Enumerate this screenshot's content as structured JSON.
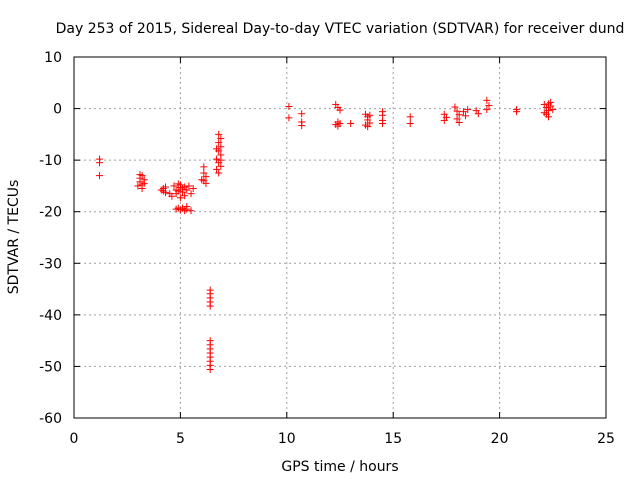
{
  "chart_data": {
    "type": "scatter",
    "title": "Day 253 of 2015, Sidereal Day-to-day VTEC variation (SDTVAR) for receiver dund",
    "xlabel": "GPS time / hours",
    "ylabel": "SDTVAR / TECUs",
    "xlim": [
      0,
      25
    ],
    "ylim": [
      -60,
      10
    ],
    "xticks": [
      0,
      5,
      10,
      15,
      20,
      25
    ],
    "yticks": [
      10,
      0,
      -10,
      -20,
      -30,
      -40,
      -50,
      -60
    ],
    "xtick_labels": [
      "0",
      "5",
      "10",
      "15",
      "20",
      "25"
    ],
    "ytick_labels": [
      "10",
      "0",
      "-10",
      "-20",
      "-30",
      "-40",
      "-50",
      "-60"
    ],
    "grid": true,
    "marker": "+",
    "color": "#ff0000",
    "series": [
      {
        "name": "SDTVAR",
        "points": [
          [
            1.2,
            -9.8
          ],
          [
            1.2,
            -10.5
          ],
          [
            1.2,
            -13.0
          ],
          [
            3.1,
            -12.8
          ],
          [
            3.1,
            -13.5
          ],
          [
            3.1,
            -14.2
          ],
          [
            3.2,
            -13.0
          ],
          [
            3.2,
            -14.8
          ],
          [
            3.3,
            -13.8
          ],
          [
            3.3,
            -14.5
          ],
          [
            3.0,
            -15.0
          ],
          [
            3.2,
            -15.5
          ],
          [
            4.2,
            -15.5
          ],
          [
            4.2,
            -16.0
          ],
          [
            4.3,
            -16.3
          ],
          [
            4.1,
            -15.8
          ],
          [
            4.3,
            -15.2
          ],
          [
            4.7,
            -15.0
          ],
          [
            4.8,
            -15.8
          ],
          [
            4.8,
            -16.5
          ],
          [
            4.9,
            -14.6
          ],
          [
            4.9,
            -16.0
          ],
          [
            5.0,
            -15.3
          ],
          [
            5.0,
            -14.8
          ],
          [
            5.1,
            -16.2
          ],
          [
            5.1,
            -15.6
          ],
          [
            5.2,
            -15.2
          ],
          [
            5.3,
            -15.8
          ],
          [
            5.4,
            -15.0
          ],
          [
            5.5,
            -16.5
          ],
          [
            5.6,
            -15.5
          ],
          [
            4.6,
            -17.0
          ],
          [
            5.0,
            -17.3
          ],
          [
            5.2,
            -16.9
          ],
          [
            4.5,
            -16.5
          ],
          [
            4.9,
            -19.3
          ],
          [
            5.0,
            -19.6
          ],
          [
            5.1,
            -19.3
          ],
          [
            5.2,
            -19.8
          ],
          [
            5.3,
            -19.5
          ],
          [
            5.5,
            -19.8
          ],
          [
            4.8,
            -19.5
          ],
          [
            5.3,
            -19.0
          ],
          [
            6.1,
            -11.3
          ],
          [
            6.1,
            -12.5
          ],
          [
            6.2,
            -13.2
          ],
          [
            6.1,
            -14.0
          ],
          [
            6.2,
            -14.5
          ],
          [
            6.0,
            -13.8
          ],
          [
            6.4,
            -35.2
          ],
          [
            6.4,
            -35.9
          ],
          [
            6.4,
            -36.7
          ],
          [
            6.4,
            -37.5
          ],
          [
            6.4,
            -38.3
          ],
          [
            6.4,
            -45.0
          ],
          [
            6.4,
            -45.8
          ],
          [
            6.4,
            -46.6
          ],
          [
            6.4,
            -47.4
          ],
          [
            6.4,
            -48.2
          ],
          [
            6.4,
            -49.0
          ],
          [
            6.4,
            -49.8
          ],
          [
            6.4,
            -50.6
          ],
          [
            6.8,
            -5.0
          ],
          [
            6.9,
            -5.8
          ],
          [
            6.8,
            -6.6
          ],
          [
            6.9,
            -7.4
          ],
          [
            6.8,
            -8.2
          ],
          [
            6.9,
            -9.0
          ],
          [
            6.7,
            -9.8
          ],
          [
            6.8,
            -10.5
          ],
          [
            6.9,
            -11.2
          ],
          [
            6.7,
            -11.8
          ],
          [
            6.8,
            -12.5
          ],
          [
            6.9,
            -10.0
          ],
          [
            6.7,
            -7.8
          ],
          [
            10.1,
            0.4
          ],
          [
            10.1,
            -1.8
          ],
          [
            10.7,
            -1.0
          ],
          [
            10.7,
            -2.6
          ],
          [
            10.7,
            -3.3
          ],
          [
            12.3,
            0.8
          ],
          [
            12.4,
            0.2
          ],
          [
            12.5,
            -0.3
          ],
          [
            12.4,
            -2.6
          ],
          [
            12.3,
            -3.1
          ],
          [
            12.5,
            -2.9
          ],
          [
            12.4,
            -3.4
          ],
          [
            13.0,
            -2.9
          ],
          [
            13.7,
            -1.1
          ],
          [
            13.8,
            -1.6
          ],
          [
            13.8,
            -2.2
          ],
          [
            13.9,
            -2.8
          ],
          [
            13.7,
            -3.2
          ],
          [
            13.9,
            -1.3
          ],
          [
            13.8,
            -3.5
          ],
          [
            14.5,
            -0.6
          ],
          [
            14.5,
            -1.3
          ],
          [
            14.5,
            -2.3
          ],
          [
            14.5,
            -2.9
          ],
          [
            15.8,
            -1.6
          ],
          [
            15.8,
            -2.9
          ],
          [
            17.4,
            -1.1
          ],
          [
            17.5,
            -1.7
          ],
          [
            17.4,
            -2.3
          ],
          [
            17.9,
            0.3
          ],
          [
            18.0,
            -0.5
          ],
          [
            18.1,
            -1.2
          ],
          [
            18.0,
            -2.0
          ],
          [
            18.1,
            -2.7
          ],
          [
            18.3,
            -0.6
          ],
          [
            18.4,
            -1.4
          ],
          [
            18.5,
            -0.2
          ],
          [
            18.9,
            -0.4
          ],
          [
            19.0,
            -1.0
          ],
          [
            19.4,
            1.6
          ],
          [
            19.5,
            0.6
          ],
          [
            19.4,
            -0.2
          ],
          [
            20.8,
            -0.2
          ],
          [
            20.8,
            -0.6
          ],
          [
            22.1,
            0.8
          ],
          [
            22.2,
            0.2
          ],
          [
            22.3,
            -0.4
          ],
          [
            22.2,
            -1.1
          ],
          [
            22.4,
            1.2
          ],
          [
            22.3,
            -1.6
          ],
          [
            22.1,
            -0.8
          ],
          [
            22.4,
            0.5
          ],
          [
            22.5,
            -0.2
          ],
          [
            22.3,
            0.9
          ]
        ]
      }
    ]
  }
}
